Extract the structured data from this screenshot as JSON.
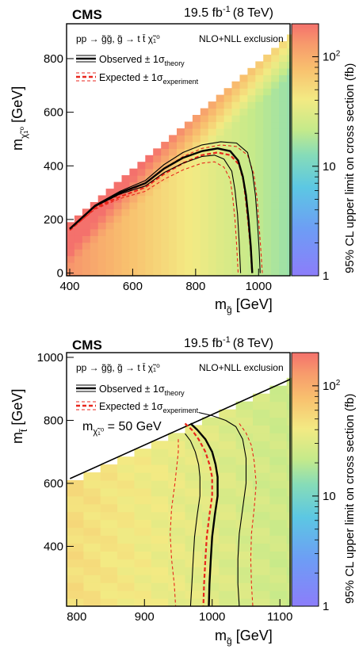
{
  "chart_data": [
    {
      "type": "heatmap",
      "experiment": "CMS",
      "luminosity": "19.5 fb",
      "luminosity_sup": "-1",
      "energy": "(8 TeV)",
      "process": "pp → g̃g̃, g̃ → t t̄ χ̃₁⁰",
      "process_note": "NLO+NLL exclusion",
      "legend": [
        {
          "label": "Observed ± 1σ",
          "sub": "theory",
          "color": "#000000",
          "style": "solid"
        },
        {
          "label": "Expected ± 1σ",
          "sub": "experiment",
          "color": "#e8261c",
          "style": "dashed"
        }
      ],
      "xlabel": "m",
      "xlabel_sub": "g̃",
      "xlabel_unit": " [GeV]",
      "ylabel": "m",
      "ylabel_sub": "χ̃₁⁰",
      "ylabel_unit": " [GeV]",
      "xlim": [
        390,
        1100
      ],
      "ylim": [
        -10,
        930
      ],
      "xticks": [
        400,
        600,
        800,
        1000
      ],
      "yticks": [
        0,
        200,
        400,
        600,
        800
      ],
      "zlabel": "95% CL upper limit on cross section (fb)",
      "zlim": [
        1,
        200
      ],
      "zticks": [
        1,
        10,
        100
      ],
      "observed": [
        [
          400,
          165
        ],
        [
          480,
          250
        ],
        [
          560,
          300
        ],
        [
          640,
          335
        ],
        [
          700,
          390
        ],
        [
          760,
          430
        ],
        [
          820,
          455
        ],
        [
          870,
          465
        ],
        [
          910,
          455
        ],
        [
          935,
          420
        ],
        [
          950,
          360
        ],
        [
          960,
          290
        ],
        [
          968,
          200
        ],
        [
          975,
          100
        ],
        [
          980,
          0
        ]
      ],
      "observed_plus": [
        [
          400,
          165
        ],
        [
          480,
          248
        ],
        [
          560,
          295
        ],
        [
          640,
          325
        ],
        [
          700,
          375
        ],
        [
          760,
          410
        ],
        [
          820,
          435
        ],
        [
          860,
          440
        ],
        [
          890,
          425
        ],
        [
          915,
          380
        ],
        [
          925,
          310
        ],
        [
          933,
          220
        ],
        [
          938,
          120
        ],
        [
          943,
          0
        ]
      ],
      "observed_minus": [
        [
          400,
          165
        ],
        [
          480,
          253
        ],
        [
          560,
          305
        ],
        [
          640,
          345
        ],
        [
          700,
          405
        ],
        [
          760,
          450
        ],
        [
          820,
          478
        ],
        [
          880,
          490
        ],
        [
          930,
          485
        ],
        [
          965,
          450
        ],
        [
          980,
          380
        ],
        [
          990,
          290
        ],
        [
          997,
          180
        ],
        [
          1002,
          80
        ],
        [
          1005,
          0
        ]
      ],
      "expected": [
        [
          400,
          160
        ],
        [
          480,
          242
        ],
        [
          560,
          285
        ],
        [
          640,
          320
        ],
        [
          700,
          370
        ],
        [
          760,
          410
        ],
        [
          820,
          440
        ],
        [
          870,
          450
        ],
        [
          910,
          440
        ],
        [
          938,
          405
        ],
        [
          952,
          345
        ],
        [
          960,
          270
        ],
        [
          968,
          180
        ],
        [
          975,
          90
        ],
        [
          980,
          0
        ]
      ],
      "expected_plus": [
        [
          400,
          160
        ],
        [
          480,
          238
        ],
        [
          560,
          278
        ],
        [
          640,
          305
        ],
        [
          700,
          350
        ],
        [
          760,
          385
        ],
        [
          820,
          410
        ],
        [
          860,
          415
        ],
        [
          890,
          395
        ],
        [
          910,
          350
        ],
        [
          918,
          280
        ],
        [
          925,
          200
        ],
        [
          930,
          110
        ],
        [
          935,
          0
        ]
      ],
      "expected_minus": [
        [
          400,
          162
        ],
        [
          480,
          246
        ],
        [
          560,
          292
        ],
        [
          640,
          335
        ],
        [
          700,
          390
        ],
        [
          760,
          435
        ],
        [
          820,
          465
        ],
        [
          880,
          478
        ],
        [
          930,
          472
        ],
        [
          965,
          440
        ],
        [
          985,
          370
        ],
        [
          995,
          280
        ],
        [
          1002,
          170
        ],
        [
          1008,
          70
        ],
        [
          1012,
          0
        ]
      ]
    },
    {
      "type": "heatmap",
      "experiment": "CMS",
      "luminosity": "19.5 fb",
      "luminosity_sup": "-1",
      "energy": "(8 TeV)",
      "process": "pp → g̃g̃, g̃ → t t̄ χ̃₁⁰",
      "process_note": "NLO+NLL exclusion",
      "legend": [
        {
          "label": "Observed ± 1σ",
          "sub": "theory",
          "color": "#000000",
          "style": "solid"
        },
        {
          "label": "Expected ± 1σ",
          "sub": "experiment",
          "color": "#e8261c",
          "style": "dashed"
        }
      ],
      "annotation": "m",
      "annotation_sub": "χ̃₁⁰",
      "annotation_value": " = 50 GeV",
      "xlabel": "m",
      "xlabel_sub": "g̃",
      "xlabel_unit": " [GeV]",
      "ylabel": "m",
      "ylabel_sub": "t̃",
      "ylabel_unit": " [GeV]",
      "xlim": [
        785,
        1115
      ],
      "ylim": [
        210,
        1015
      ],
      "xticks": [
        800,
        900,
        1000,
        1100
      ],
      "yticks": [
        400,
        600,
        800,
        1000
      ],
      "zlabel": "95% CL upper limit on cross section (fb)",
      "zlim": [
        1,
        200
      ],
      "zticks": [
        1,
        10,
        100
      ],
      "observed": [
        [
          968,
          790
        ],
        [
          978,
          770
        ],
        [
          990,
          740
        ],
        [
          1000,
          700
        ],
        [
          1005,
          660
        ],
        [
          1008,
          620
        ],
        [
          1008,
          560
        ],
        [
          1004,
          500
        ],
        [
          1000,
          430
        ],
        [
          998,
          360
        ],
        [
          996,
          280
        ],
        [
          995,
          210
        ]
      ],
      "observed_plus": [
        [
          960,
          758
        ],
        [
          968,
          735
        ],
        [
          975,
          700
        ],
        [
          980,
          660
        ],
        [
          982,
          620
        ],
        [
          982,
          560
        ],
        [
          978,
          500
        ],
        [
          974,
          430
        ],
        [
          972,
          360
        ],
        [
          970,
          280
        ],
        [
          968,
          210
        ]
      ],
      "observed_minus": [
        [
          980,
          825
        ],
        [
          1000,
          815
        ],
        [
          1020,
          800
        ],
        [
          1035,
          780
        ],
        [
          1045,
          740
        ],
        [
          1050,
          680
        ],
        [
          1050,
          600
        ],
        [
          1045,
          520
        ],
        [
          1040,
          440
        ],
        [
          1038,
          360
        ],
        [
          1038,
          280
        ],
        [
          1040,
          210
        ]
      ],
      "expected": [
        [
          960,
          790
        ],
        [
          970,
          770
        ],
        [
          980,
          740
        ],
        [
          990,
          700
        ],
        [
          996,
          660
        ],
        [
          1000,
          620
        ],
        [
          1000,
          560
        ],
        [
          996,
          500
        ],
        [
          992,
          430
        ],
        [
          990,
          360
        ],
        [
          988,
          280
        ],
        [
          987,
          210
        ]
      ],
      "expected_plus": [
        [
          950,
          740
        ],
        [
          950,
          700
        ],
        [
          948,
          660
        ],
        [
          945,
          600
        ],
        [
          940,
          520
        ],
        [
          938,
          440
        ],
        [
          940,
          360
        ],
        [
          944,
          280
        ],
        [
          946,
          210
        ]
      ],
      "expected_minus": [
        [
          1040,
          790
        ],
        [
          1050,
          760
        ],
        [
          1058,
          720
        ],
        [
          1062,
          670
        ],
        [
          1065,
          600
        ],
        [
          1062,
          520
        ],
        [
          1058,
          440
        ],
        [
          1057,
          360
        ],
        [
          1058,
          280
        ],
        [
          1060,
          210
        ]
      ]
    }
  ]
}
